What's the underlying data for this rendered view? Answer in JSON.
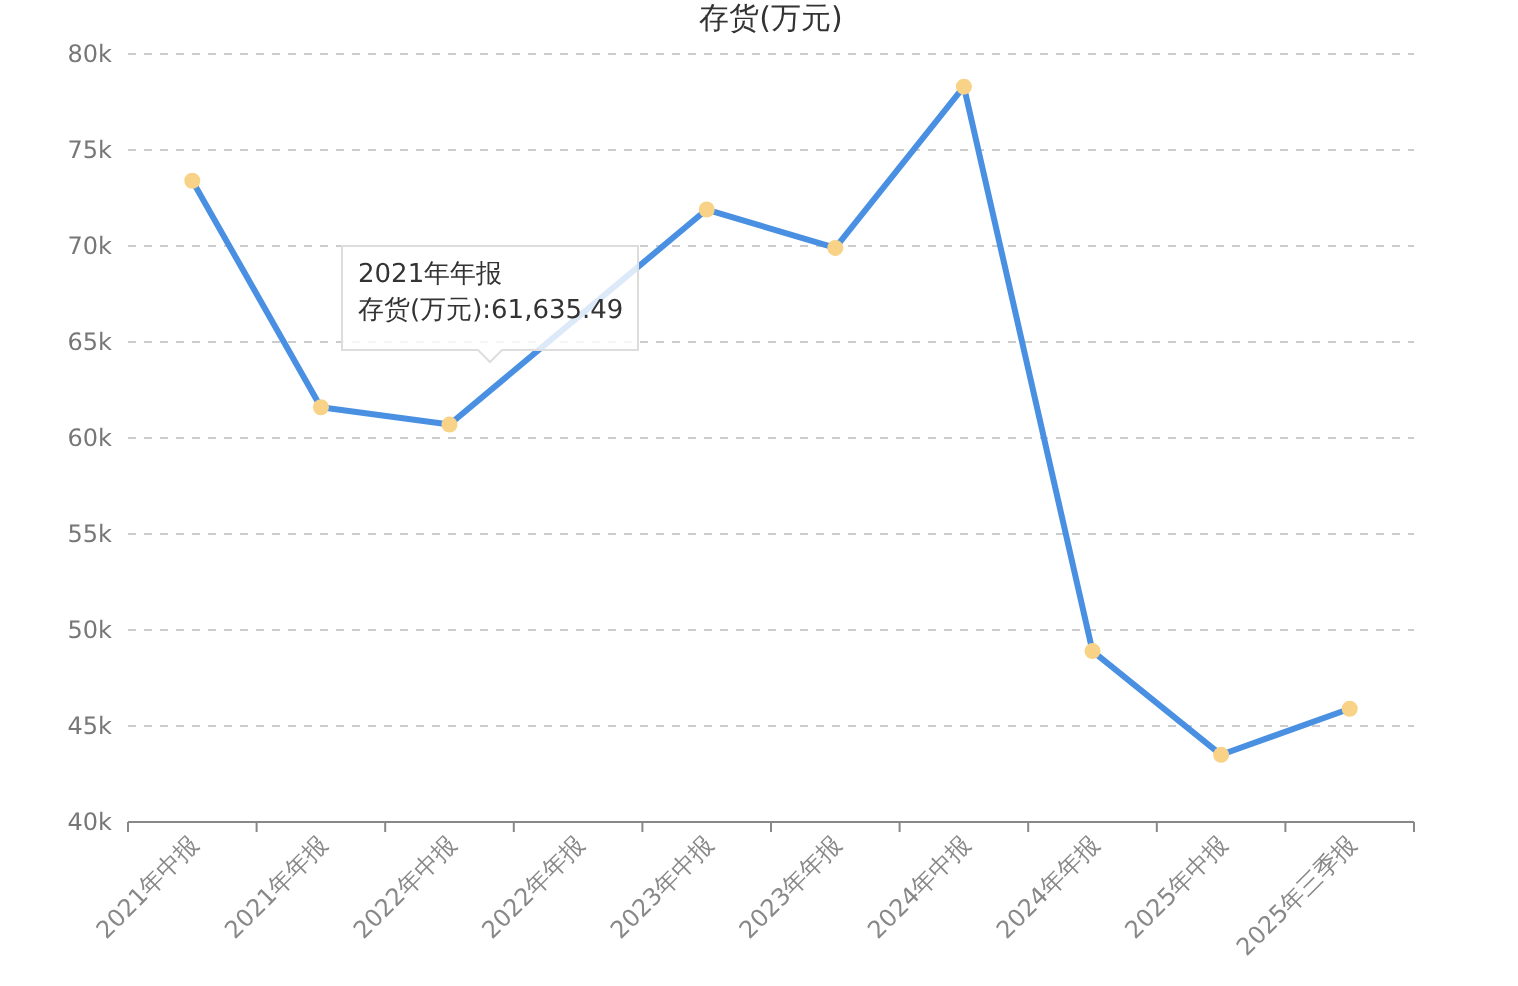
{
  "chart_data": {
    "type": "line",
    "title": "存货(万元)",
    "categories": [
      "2021年中报",
      "2021年年报",
      "2022年中报",
      "2022年年报",
      "2023年中报",
      "2023年年报",
      "2024年中报",
      "2024年年报",
      "2025年中报",
      "2025年三季报"
    ],
    "series": [
      {
        "color": "#4a90e2",
        "values": [
          73.4,
          61.6,
          60.7,
          null,
          71.9,
          69.9,
          78.3,
          48.9,
          43.5,
          45.9
        ]
      }
    ],
    "ylim": [
      40,
      80
    ],
    "yticks": [
      {
        "value": 40,
        "label": "40k"
      },
      {
        "value": 45,
        "label": "45k"
      },
      {
        "value": 50,
        "label": "50k"
      },
      {
        "value": 55,
        "label": "55k"
      },
      {
        "value": 60,
        "label": "60k"
      },
      {
        "value": 65,
        "label": "65k"
      },
      {
        "value": 70,
        "label": "70k"
      },
      {
        "value": 75,
        "label": "75k"
      },
      {
        "value": 80,
        "label": "80k"
      }
    ],
    "grid": "y",
    "marker": "circle",
    "line_style": "solid",
    "annotations": [
      "2021年年报",
      "存货(万元):61,635.49"
    ]
  }
}
